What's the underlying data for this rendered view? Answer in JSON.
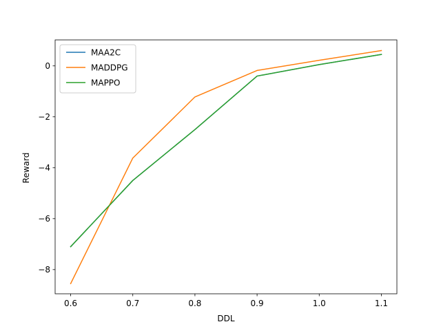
{
  "chart_data": {
    "type": "line",
    "title": "",
    "xlabel": "DDL",
    "ylabel": "Reward",
    "x": [
      0.6,
      0.7,
      0.8,
      0.9,
      1.0,
      1.1
    ],
    "xticks": [
      0.6,
      0.7,
      0.8,
      0.9,
      1.0,
      1.1
    ],
    "xtick_labels": [
      "0.6",
      "0.7",
      "0.8",
      "0.9",
      "1.0",
      "1.1"
    ],
    "yticks": [
      -8,
      -6,
      -4,
      -2,
      0
    ],
    "ytick_labels": [
      "−8",
      "−6",
      "−4",
      "−2",
      "0"
    ],
    "xlim": [
      0.575,
      1.125
    ],
    "ylim": [
      -8.95,
      1.02
    ],
    "grid": false,
    "legend_position": "top-left",
    "series": [
      {
        "name": "MAA2C",
        "color": "#1f77b4",
        "values": [
          -7.1,
          -4.5,
          -2.5,
          -0.4,
          0.05,
          0.45
        ]
      },
      {
        "name": "MADDPG",
        "color": "#ff7f0e",
        "values": [
          -8.55,
          -3.62,
          -1.22,
          -0.18,
          0.22,
          0.6
        ]
      },
      {
        "name": "MAPPO",
        "color": "#2ca02c",
        "values": [
          -7.1,
          -4.5,
          -2.5,
          -0.4,
          0.05,
          0.45
        ]
      }
    ]
  }
}
